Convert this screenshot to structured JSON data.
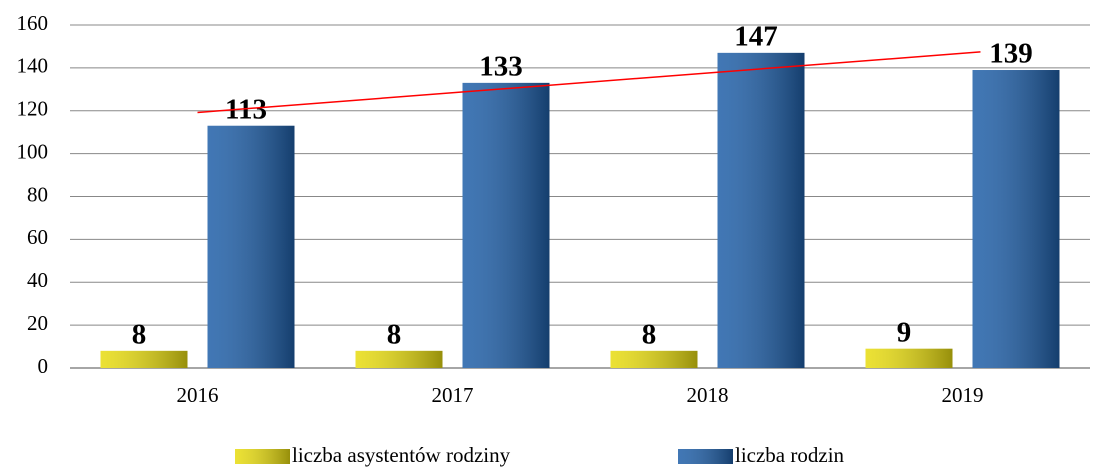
{
  "chart_data": {
    "type": "bar",
    "categories": [
      "2016",
      "2017",
      "2018",
      "2019"
    ],
    "series": [
      {
        "name": "liczba asystentów rodziny",
        "color": "#e8dc10",
        "values": [
          8,
          8,
          8,
          9
        ]
      },
      {
        "name": "liczba rodzin",
        "color": "#1f5fa8",
        "values": [
          113,
          133,
          147,
          139
        ]
      }
    ],
    "trendline": {
      "series": 1,
      "color": "#ff0000"
    },
    "ylim": [
      0,
      160
    ],
    "yticks": [
      0,
      20,
      40,
      60,
      80,
      100,
      120,
      140,
      160
    ],
    "grid": true,
    "legend": "bottom"
  }
}
